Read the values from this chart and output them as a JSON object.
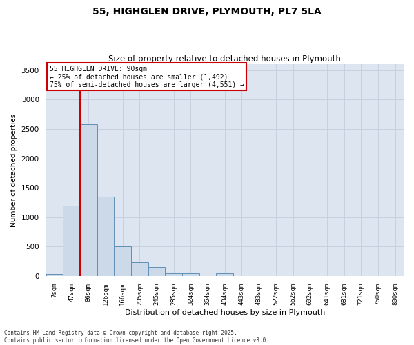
{
  "title_line1": "55, HIGHGLEN DRIVE, PLYMOUTH, PL7 5LA",
  "title_line2": "Size of property relative to detached houses in Plymouth",
  "xlabel": "Distribution of detached houses by size in Plymouth",
  "ylabel": "Number of detached properties",
  "categories": [
    "7sqm",
    "47sqm",
    "86sqm",
    "126sqm",
    "166sqm",
    "205sqm",
    "245sqm",
    "285sqm",
    "324sqm",
    "364sqm",
    "404sqm",
    "443sqm",
    "483sqm",
    "522sqm",
    "562sqm",
    "602sqm",
    "641sqm",
    "681sqm",
    "721sqm",
    "760sqm",
    "800sqm"
  ],
  "values": [
    30,
    1200,
    2580,
    1350,
    500,
    230,
    155,
    50,
    50,
    0,
    50,
    0,
    0,
    0,
    0,
    0,
    0,
    0,
    0,
    0,
    0
  ],
  "bar_color": "#ccd9e8",
  "bar_edge_color": "#6090b8",
  "red_line_color": "#cc0000",
  "annotation_text_line1": "55 HIGHGLEN DRIVE: 90sqm",
  "annotation_text_line2": "← 25% of detached houses are smaller (1,492)",
  "annotation_text_line3": "75% of semi-detached houses are larger (4,551) →",
  "annotation_box_color": "#ffffff",
  "annotation_box_edge": "#cc0000",
  "ylim": [
    0,
    3600
  ],
  "yticks": [
    0,
    500,
    1000,
    1500,
    2000,
    2500,
    3000,
    3500
  ],
  "grid_color": "#c8d0e0",
  "bg_color": "#dde5f0",
  "footer_line1": "Contains HM Land Registry data © Crown copyright and database right 2025.",
  "footer_line2": "Contains public sector information licensed under the Open Government Licence v3.0."
}
